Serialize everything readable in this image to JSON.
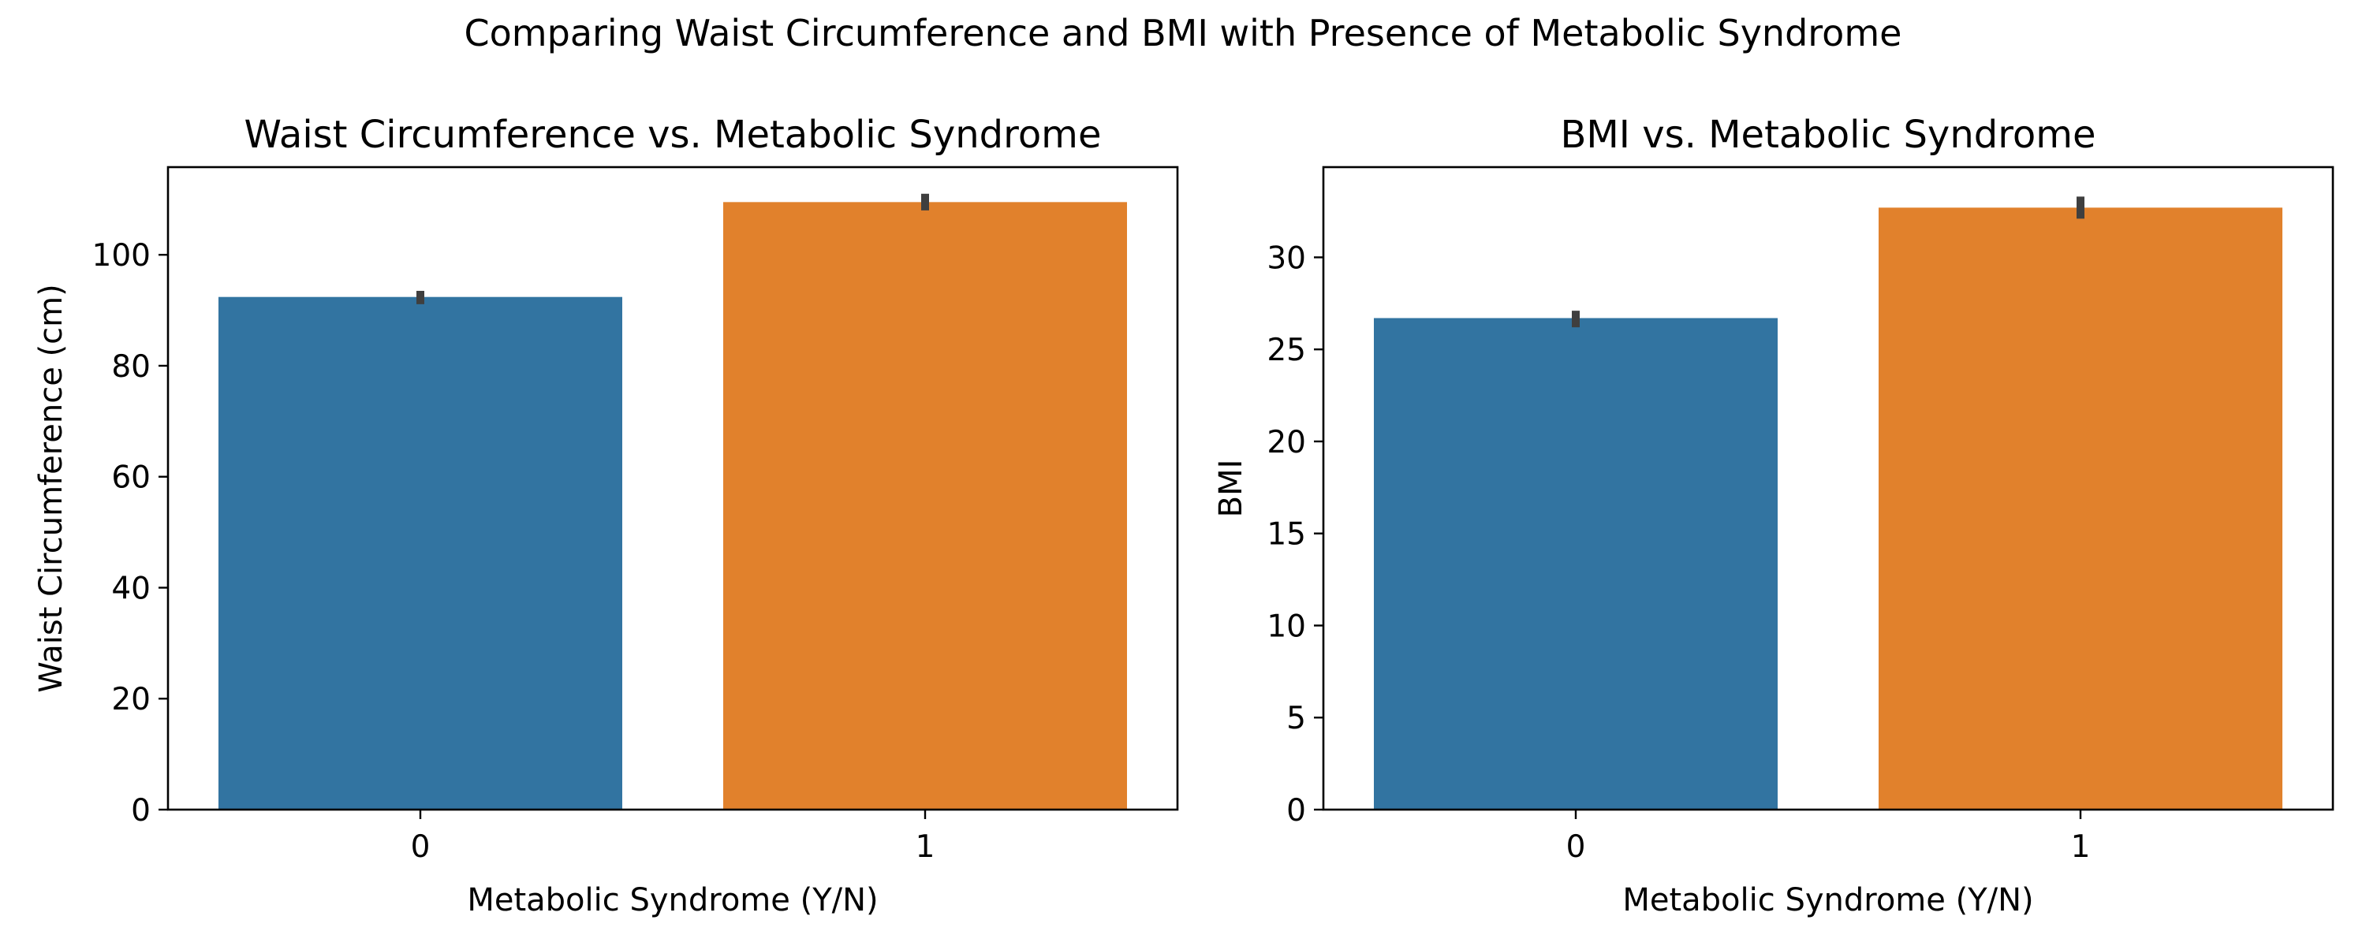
{
  "figure": {
    "suptitle": "Comparing Waist Circumference and BMI with Presence of Metabolic Syndrome"
  },
  "chart_data": [
    {
      "type": "bar",
      "title": "Waist Circumference vs. Metabolic Syndrome",
      "xlabel": "Metabolic Syndrome (Y/N)",
      "ylabel": "Waist Circumference (cm)",
      "categories": [
        "0",
        "1"
      ],
      "values": [
        92.4,
        109.5
      ],
      "error_low": [
        91.1,
        108.0
      ],
      "error_high": [
        93.5,
        111.0
      ],
      "colors": [
        "#3274a1",
        "#e1812c"
      ],
      "ylim": [
        0,
        115.8
      ],
      "yticks": [
        0,
        20,
        40,
        60,
        80,
        100
      ],
      "grid": false,
      "legend": "none"
    },
    {
      "type": "bar",
      "title": "BMI vs. Metabolic Syndrome",
      "xlabel": "Metabolic Syndrome (Y/N)",
      "ylabel": "BMI",
      "categories": [
        "0",
        "1"
      ],
      "values": [
        26.7,
        32.7
      ],
      "error_low": [
        26.2,
        32.1
      ],
      "error_high": [
        27.1,
        33.3
      ],
      "colors": [
        "#3274a1",
        "#e1812c"
      ],
      "ylim": [
        0,
        34.9
      ],
      "yticks": [
        0,
        5,
        10,
        15,
        20,
        25,
        30
      ],
      "grid": false,
      "legend": "none"
    }
  ]
}
